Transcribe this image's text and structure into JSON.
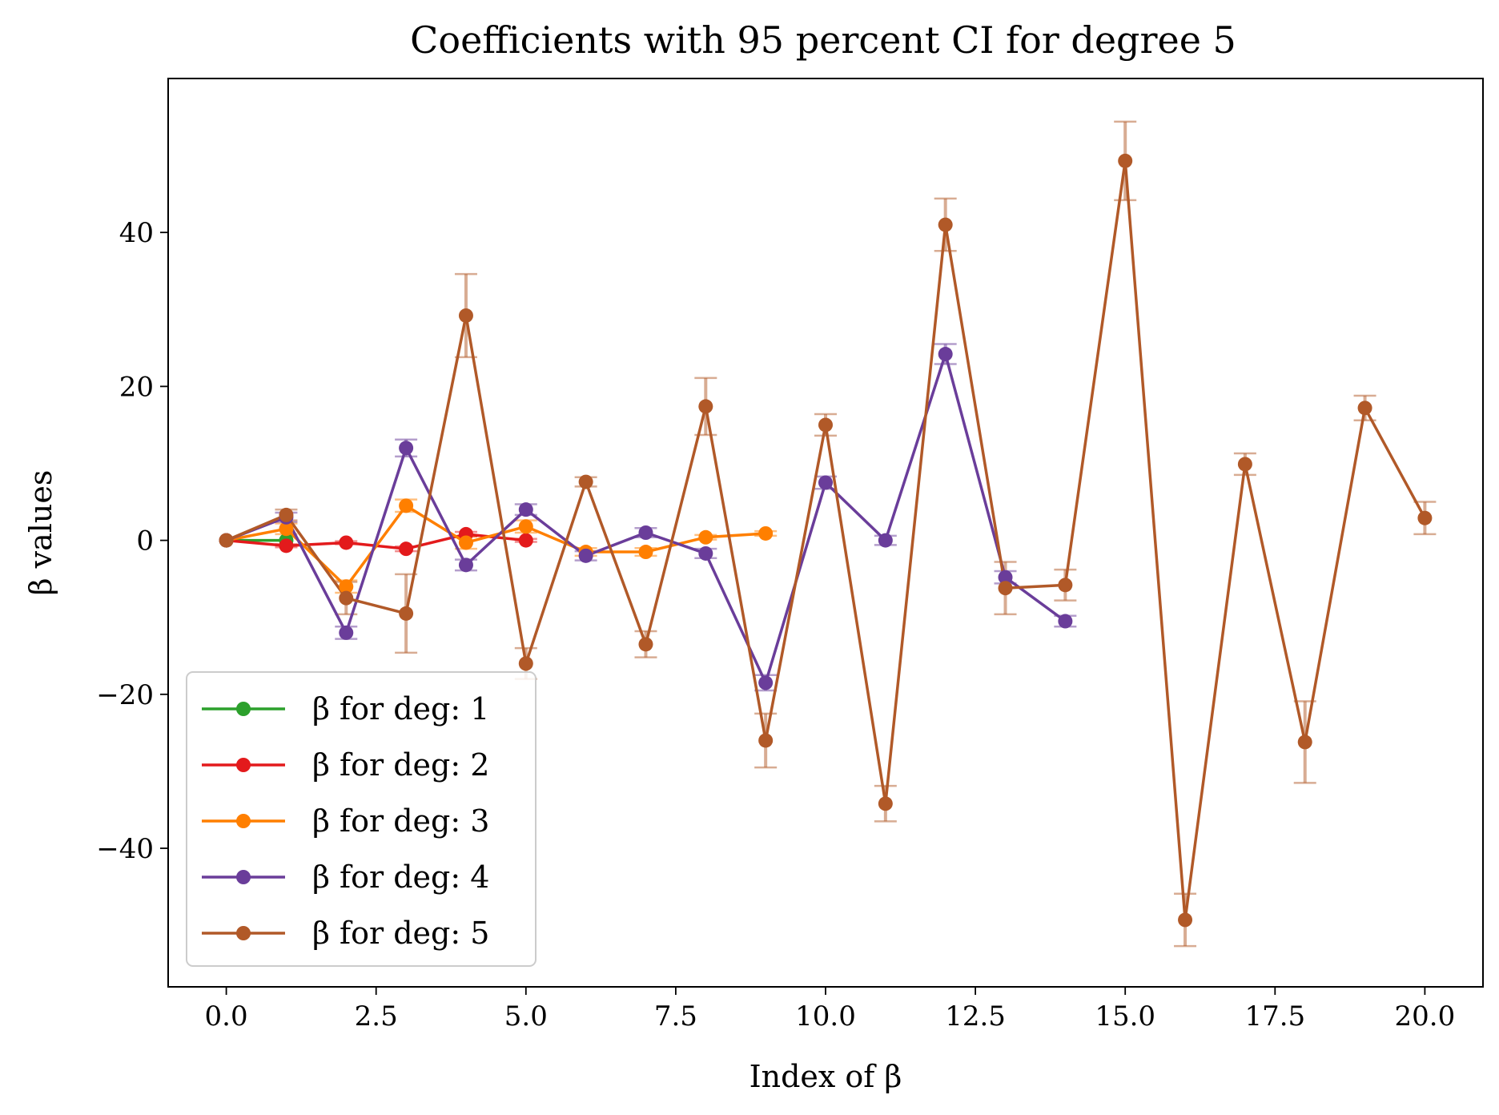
{
  "chart_data": {
    "type": "line",
    "title": "Coefficients with 95 percent CI for degree 5",
    "xlabel": "Index of β",
    "ylabel": "β values",
    "xlim": [
      -0.97,
      20.97
    ],
    "ylim": [
      -58,
      60
    ],
    "xticks": [
      0.0,
      2.5,
      5.0,
      7.5,
      10.0,
      12.5,
      15.0,
      17.5,
      20.0
    ],
    "xtick_labels": [
      "0.0",
      "2.5",
      "5.0",
      "7.5",
      "10.0",
      "12.5",
      "15.0",
      "17.5",
      "20.0"
    ],
    "yticks": [
      -40,
      -20,
      0,
      20,
      40
    ],
    "ytick_labels": [
      "−40",
      "−20",
      "0",
      "20",
      "40"
    ],
    "grid": false,
    "legend_position": "lower-left",
    "series": [
      {
        "name": "β for deg: 1",
        "color": "#2ca02c",
        "x": [
          0,
          1
        ],
        "values": [
          0,
          0
        ],
        "ci_low": [
          0,
          0
        ],
        "ci_high": [
          0,
          0
        ]
      },
      {
        "name": "β for deg: 2",
        "color": "#e31a1c",
        "x": [
          0,
          1,
          2,
          3,
          4,
          5
        ],
        "values": [
          0,
          -0.7,
          -0.3,
          -1.1,
          0.8,
          0
        ],
        "ci_low": [
          0,
          -0.9,
          -0.5,
          -1.4,
          0.5,
          -0.2
        ],
        "ci_high": [
          0,
          -0.5,
          -0.1,
          -0.8,
          1.1,
          0.2
        ]
      },
      {
        "name": "β for deg: 3",
        "color": "#ff7f00",
        "x": [
          0,
          1,
          2,
          3,
          4,
          5,
          6,
          7,
          8,
          9
        ],
        "values": [
          0,
          1.5,
          -6.0,
          4.5,
          -0.3,
          1.8,
          -1.5,
          -1.5,
          0.4,
          0.9
        ],
        "ci_low": [
          0,
          0.8,
          -6.8,
          3.7,
          -1.1,
          1.0,
          -2.0,
          -2.0,
          0.1,
          0.6
        ],
        "ci_high": [
          0,
          2.2,
          -5.2,
          5.3,
          0.5,
          2.6,
          -1.0,
          -1.0,
          0.7,
          1.2
        ]
      },
      {
        "name": "β for deg: 4",
        "color": "#6a3d9a",
        "x": [
          0,
          1,
          2,
          3,
          4,
          5,
          6,
          7,
          8,
          9,
          10,
          11,
          12,
          13,
          14
        ],
        "values": [
          0,
          3.0,
          -12.0,
          12.0,
          -3.2,
          4.0,
          -2.0,
          1.0,
          -1.7,
          -18.5,
          7.5,
          0,
          24.2,
          -4.8,
          -10.5
        ],
        "ci_low": [
          0,
          2.4,
          -12.8,
          10.9,
          -3.9,
          3.3,
          -2.6,
          0.4,
          -2.3,
          -19.5,
          6.7,
          -0.6,
          22.9,
          -5.6,
          -11.2
        ],
        "ci_high": [
          0,
          3.6,
          -11.2,
          13.1,
          -2.5,
          4.7,
          -1.4,
          1.6,
          -1.1,
          -17.5,
          8.3,
          0.6,
          25.5,
          -4.0,
          -9.8
        ]
      },
      {
        "name": "β for deg: 5",
        "color": "#b15928",
        "x": [
          0,
          1,
          2,
          3,
          4,
          5,
          6,
          7,
          8,
          9,
          10,
          11,
          12,
          13,
          14,
          15,
          16,
          17,
          18,
          19,
          20
        ],
        "values": [
          0,
          3.3,
          -7.5,
          -9.5,
          29.2,
          -16.0,
          7.6,
          -13.5,
          17.4,
          -26.0,
          15.0,
          -34.2,
          41.0,
          -6.2,
          -5.8,
          49.3,
          -49.3,
          9.9,
          -26.2,
          17.2,
          2.9
        ],
        "ci_low": [
          0,
          2.6,
          -9.6,
          -14.6,
          23.8,
          -18.0,
          7.0,
          -15.2,
          13.7,
          -29.5,
          13.6,
          -36.5,
          37.6,
          -9.6,
          -7.8,
          44.2,
          -52.7,
          8.5,
          -31.5,
          15.6,
          0.8
        ],
        "ci_high": [
          0,
          4.0,
          -5.4,
          -4.4,
          34.6,
          -14.0,
          8.2,
          -11.8,
          21.1,
          -22.5,
          16.4,
          -31.9,
          44.4,
          -2.8,
          -3.8,
          54.4,
          -45.9,
          11.3,
          -20.9,
          18.8,
          5.0
        ]
      }
    ]
  }
}
